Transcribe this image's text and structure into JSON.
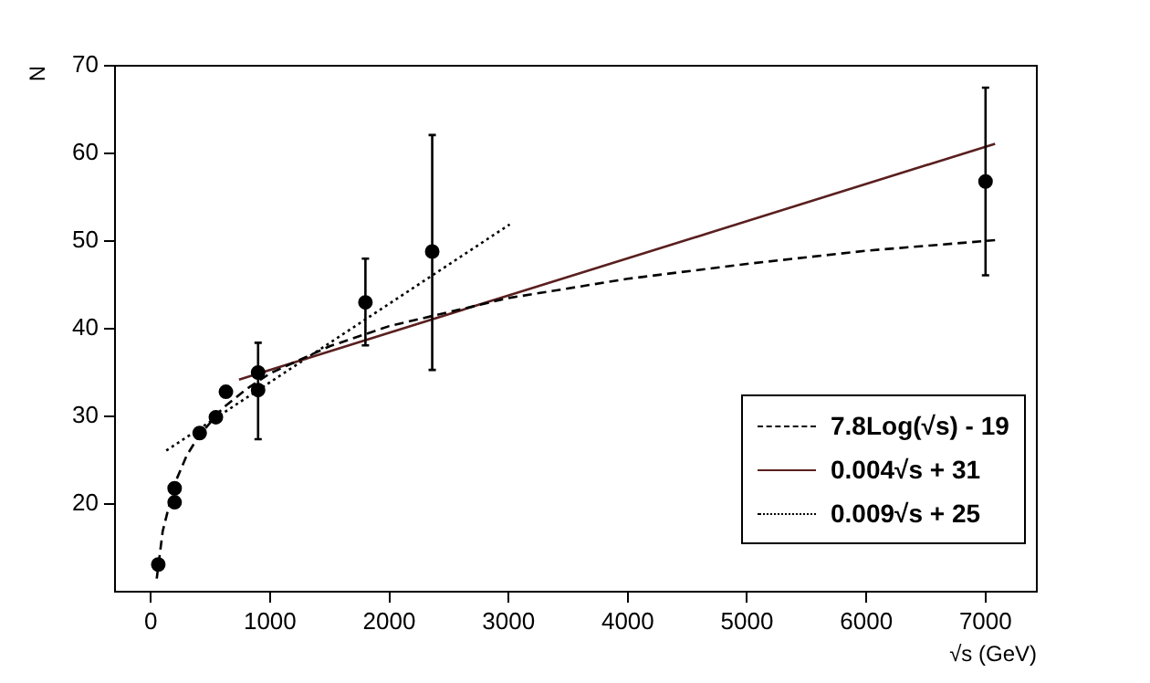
{
  "chart_data": {
    "type": "scatter",
    "xlabel": "√s (GeV)",
    "ylabel": "N",
    "xlim": [
      -300,
      7430
    ],
    "ylim": [
      10,
      70
    ],
    "xticks": [
      0,
      1000,
      2000,
      3000,
      4000,
      5000,
      6000,
      7000
    ],
    "yticks": [
      20,
      30,
      40,
      50,
      60,
      70
    ],
    "grid": false,
    "legend": "bottom right",
    "marker": "circle",
    "series": [
      {
        "color": "#000000",
        "x": [
          63,
          200,
          200,
          410,
          546,
          630,
          900,
          900,
          1800,
          2360,
          7000
        ],
        "values": [
          13.1,
          21.8,
          20.2,
          28.1,
          29.9,
          32.8,
          35.0,
          33.0,
          43.0,
          48.8,
          56.8
        ],
        "errors": [
          null,
          null,
          null,
          null,
          null,
          null,
          null,
          [
            27.4,
            38.4
          ],
          [
            38.1,
            48.0
          ],
          [
            35.3,
            62.1
          ],
          [
            46.1,
            67.5
          ]
        ]
      },
      {
        "type": "line",
        "name": "7.8Log(√s) - 19",
        "color": "#000000",
        "line_style": "dashed",
        "marker": "none",
        "x": [
          50,
          100,
          200,
          300,
          400,
          600,
          800,
          1000,
          1500,
          2000,
          3000,
          4000,
          5000,
          6000,
          7080
        ],
        "values": [
          11.5,
          16.9,
          22.3,
          25.5,
          27.7,
          30.9,
          33.1,
          34.9,
          38.0,
          40.3,
          43.5,
          45.7,
          47.4,
          48.9,
          50.1
        ]
      },
      {
        "type": "line",
        "name": "0.004√s + 31",
        "color": "#5a1f1f",
        "line_style": "solid",
        "marker": "none",
        "x": [
          740,
          7080
        ],
        "values": [
          34.2,
          61.1
        ]
      },
      {
        "type": "line",
        "name": "0.009√s + 25",
        "color": "#000000",
        "line_style": "dotted",
        "marker": "none",
        "x": [
          130,
          3010
        ],
        "values": [
          26.1,
          51.9
        ]
      }
    ]
  }
}
